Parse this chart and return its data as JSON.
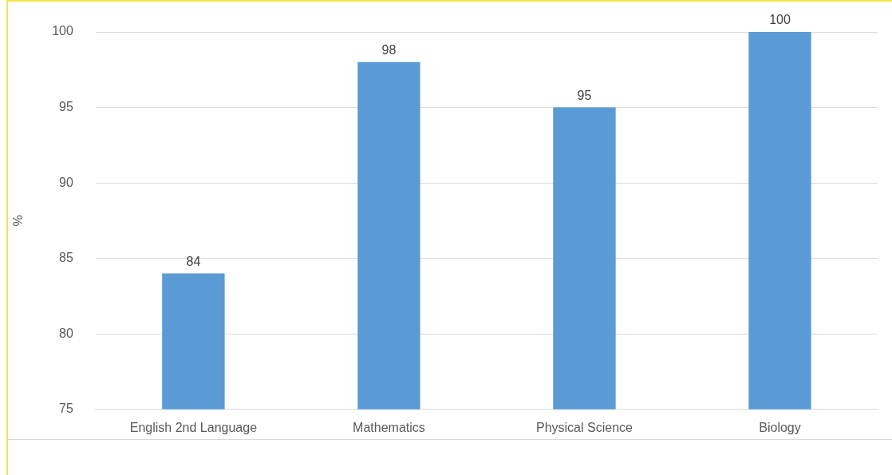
{
  "chart_data": {
    "type": "bar",
    "ylabel": "%",
    "categories": [
      "English 2nd Language",
      "Mathematics",
      "Physical Science",
      "Biology"
    ],
    "values": [
      84,
      98,
      95,
      100
    ],
    "color": "#5b9bd5",
    "ylim": [
      75,
      100
    ],
    "yticks": [
      75,
      80,
      85,
      90,
      95,
      100
    ],
    "grid": "y",
    "data_labels": true,
    "legend": false
  }
}
